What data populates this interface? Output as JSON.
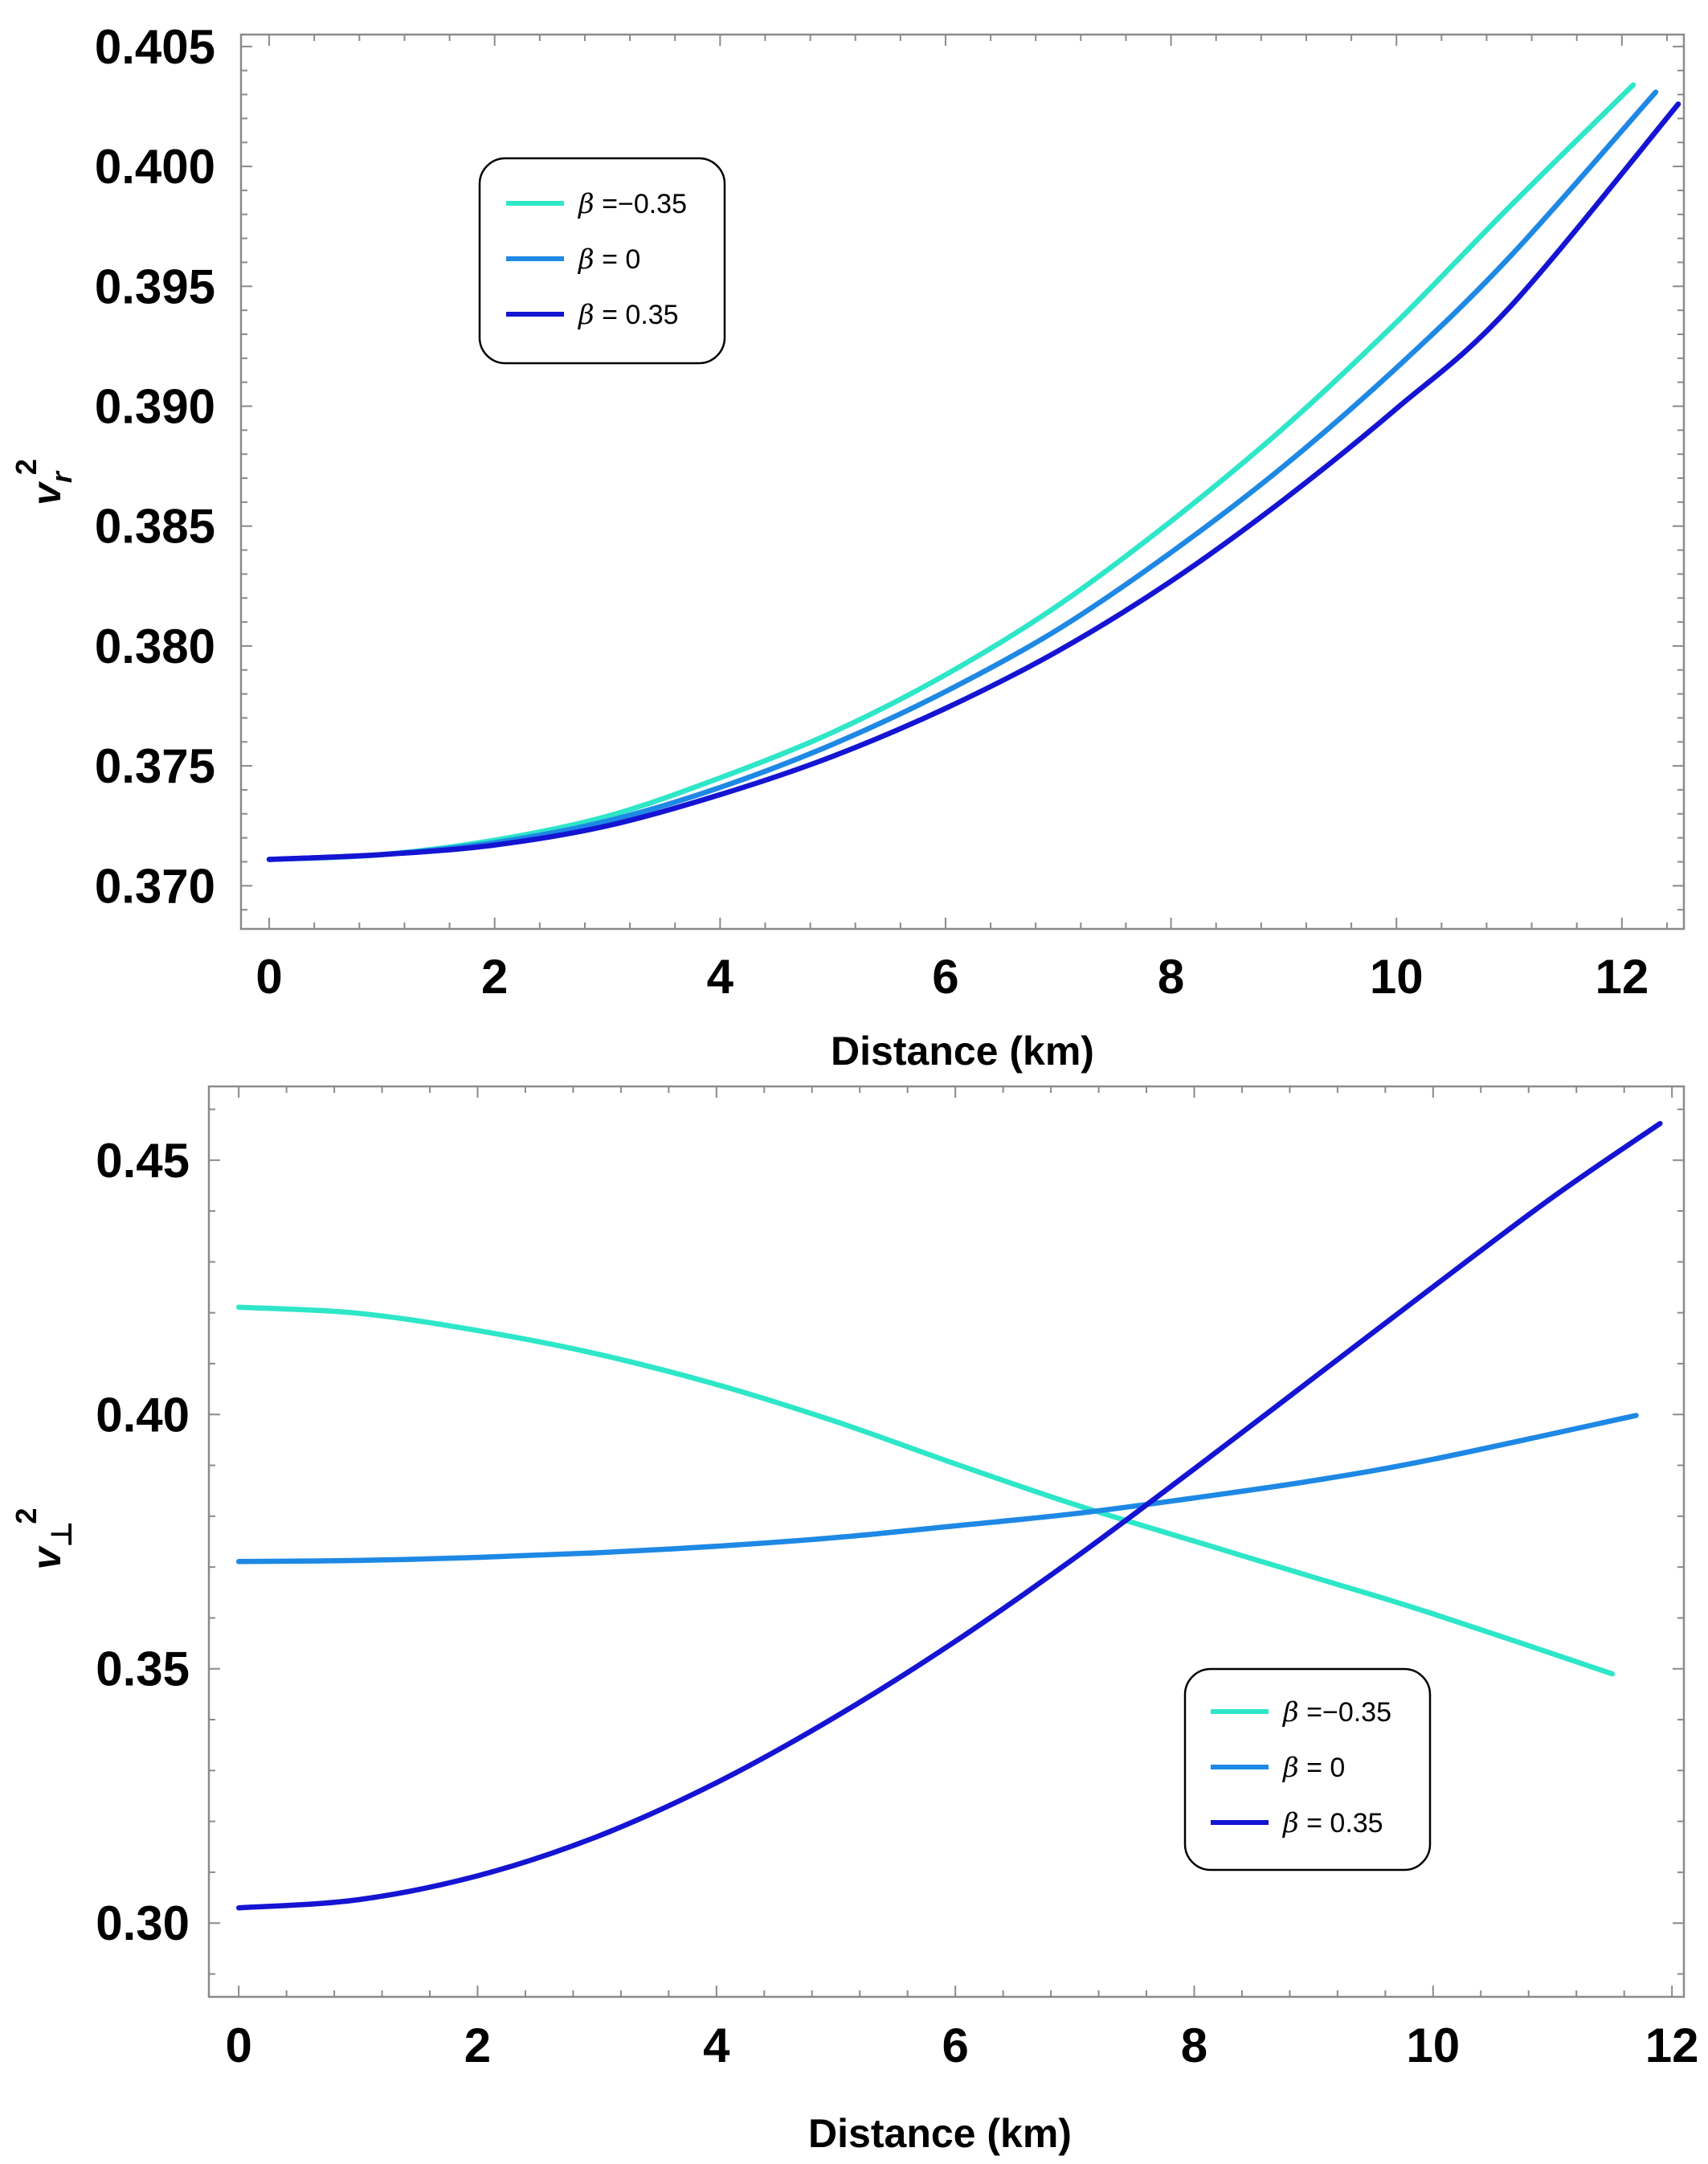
{
  "chart_data": [
    {
      "type": "line",
      "title": "",
      "xlabel": "Distance (km)",
      "ylabel": "v_r^2",
      "ylabel_main": "v",
      "ylabel_sub": "r",
      "ylabel_sup": "2",
      "xlim": [
        -0.25,
        12.55
      ],
      "ylim": [
        0.3682,
        0.4055
      ],
      "xticks": [
        0,
        2,
        4,
        6,
        8,
        10,
        12
      ],
      "xtick_labels": [
        "0",
        "2",
        "4",
        "6",
        "8",
        "10",
        "12"
      ],
      "yticks": [
        0.37,
        0.375,
        0.38,
        0.385,
        0.39,
        0.395,
        0.4,
        0.405
      ],
      "ytick_labels": [
        "0.370",
        "0.375",
        "0.380",
        "0.385",
        "0.390",
        "0.395",
        "0.400",
        "0.405"
      ],
      "grid": false,
      "legend_position": "top-left",
      "series": [
        {
          "name": "β =−0.35",
          "color": "#2ee6c8",
          "x": [
            0,
            1,
            2,
            3,
            4,
            5,
            6,
            7,
            8,
            9,
            10,
            11,
            12.1
          ],
          "y": [
            0.3711,
            0.3713,
            0.3719,
            0.3729,
            0.3745,
            0.3764,
            0.3788,
            0.3817,
            0.3852,
            0.3891,
            0.3935,
            0.3983,
            0.4034
          ]
        },
        {
          "name": "β = 0",
          "color": "#1e88e5",
          "x": [
            0,
            1,
            2,
            3,
            4,
            5,
            6,
            7,
            8,
            9,
            10,
            11,
            12.3
          ],
          "y": [
            0.3711,
            0.3713,
            0.3718,
            0.3727,
            0.3741,
            0.3759,
            0.3781,
            0.3807,
            0.3839,
            0.3875,
            0.3916,
            0.3962,
            0.4031
          ]
        },
        {
          "name": "β = 0.35",
          "color": "#1414d2",
          "x": [
            0,
            1,
            2,
            3,
            4,
            5,
            6,
            7,
            8,
            9,
            10,
            11,
            12.5
          ],
          "y": [
            0.3711,
            0.3713,
            0.3717,
            0.3725,
            0.3738,
            0.3754,
            0.3774,
            0.3798,
            0.3827,
            0.3861,
            0.3899,
            0.3941,
            0.4026
          ]
        }
      ]
    },
    {
      "type": "line",
      "title": "",
      "xlabel": "Distance (km)",
      "ylabel": "v_⊥^2",
      "ylabel_main": "v",
      "ylabel_sub": "⊥",
      "ylabel_sup": "2",
      "xlim": [
        -0.25,
        12.1
      ],
      "ylim": [
        0.2855,
        0.4645
      ],
      "xticks": [
        0,
        2,
        4,
        6,
        8,
        10,
        12
      ],
      "xtick_labels": [
        "0",
        "2",
        "4",
        "6",
        "8",
        "10",
        "12"
      ],
      "yticks": [
        0.3,
        0.35,
        0.4,
        0.45
      ],
      "ytick_labels": [
        "0.30",
        "0.35",
        "0.40",
        "0.45"
      ],
      "grid": false,
      "legend_position": "bottom-right",
      "series": [
        {
          "name": "β =−0.35",
          "color": "#2ee6c8",
          "x": [
            0,
            1,
            2,
            3,
            4,
            5,
            6,
            7,
            8,
            9,
            10,
            11.5
          ],
          "y": [
            0.4211,
            0.4199,
            0.4165,
            0.4119,
            0.4059,
            0.3986,
            0.3903,
            0.3823,
            0.3751,
            0.368,
            0.3608,
            0.349
          ]
        },
        {
          "name": "β = 0",
          "color": "#1e88e5",
          "x": [
            0,
            1,
            2,
            3,
            4,
            5,
            6,
            7,
            8,
            9,
            10,
            11.7
          ],
          "y": [
            0.3711,
            0.3713,
            0.3719,
            0.3728,
            0.3741,
            0.3758,
            0.3781,
            0.3805,
            0.3836,
            0.387,
            0.3912,
            0.3998
          ]
        },
        {
          "name": "β = 0.35",
          "color": "#1414d2",
          "x": [
            0,
            1,
            2,
            3,
            4,
            5,
            6,
            7,
            8,
            9,
            10,
            11,
            11.9
          ],
          "y": [
            0.303,
            0.3046,
            0.3093,
            0.317,
            0.3276,
            0.3406,
            0.3554,
            0.3718,
            0.3893,
            0.4072,
            0.4251,
            0.4427,
            0.4572
          ]
        }
      ]
    }
  ]
}
